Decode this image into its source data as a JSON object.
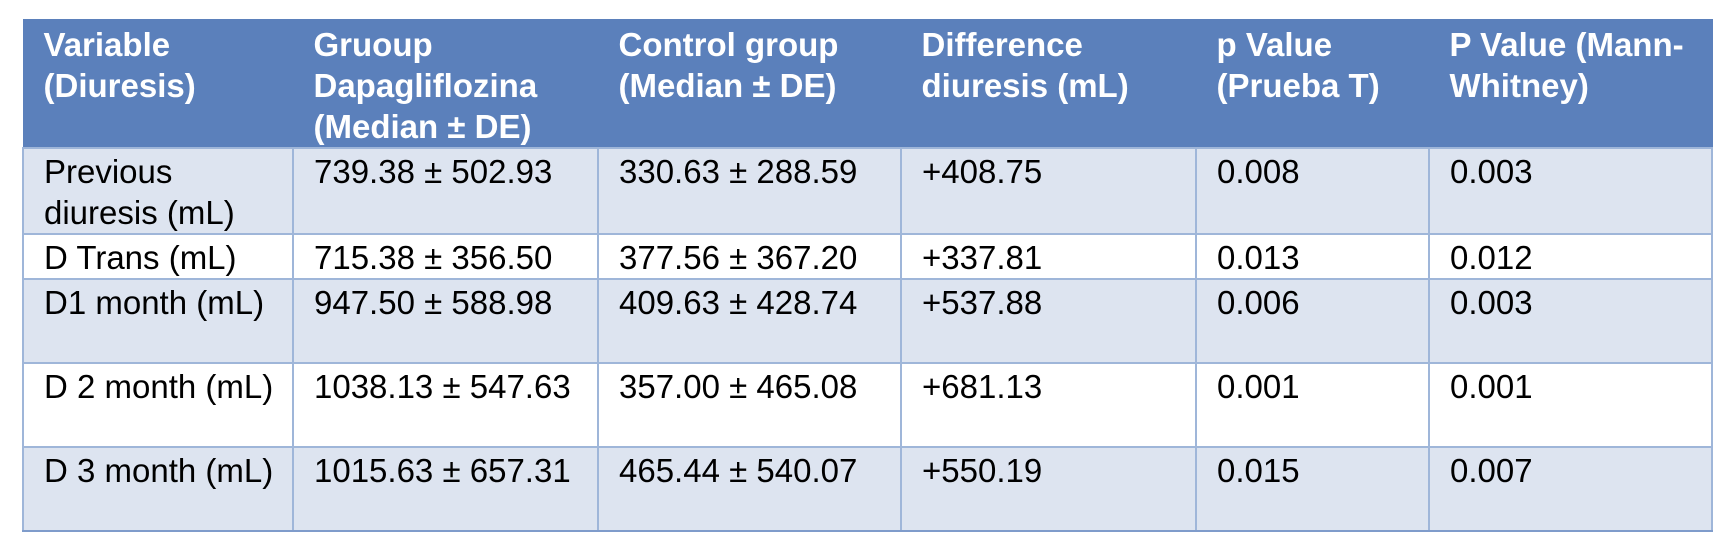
{
  "table": {
    "headers": [
      "Variable (Diuresis)",
      "Gruoup Dapagliflozina (Median ± DE)",
      "Control group (Median ± DE)",
      "Difference diuresis (mL)",
      "p Value (Prueba T)",
      "P Value (Mann-Whitney)"
    ],
    "rows": [
      [
        "Previous diuresis (mL)",
        "739.38 ± 502.93",
        "330.63 ± 288.59",
        "+408.75",
        "0.008",
        "0.003"
      ],
      [
        "D Trans (mL)",
        "715.38 ± 356.50",
        "377.56 ± 367.20",
        "+337.81",
        "0.013",
        "0.012"
      ],
      [
        "D1 month (mL)",
        "947.50 ± 588.98",
        "409.63 ± 428.74",
        "+537.88",
        "0.006",
        "0.003"
      ],
      [
        "D 2 month (mL)",
        "1038.13 ± 547.63",
        "357.00 ± 465.08",
        "+681.13",
        "0.001",
        "0.001"
      ],
      [
        "D 3 month (mL)",
        "1015.63 ± 657.31",
        "465.44 ± 540.07",
        "+550.19",
        "0.015",
        "0.007"
      ]
    ]
  },
  "colors": {
    "header_bg": "#5b80bb",
    "shaded_row_bg": "#dde4f0",
    "border": "#9fb6d9"
  }
}
